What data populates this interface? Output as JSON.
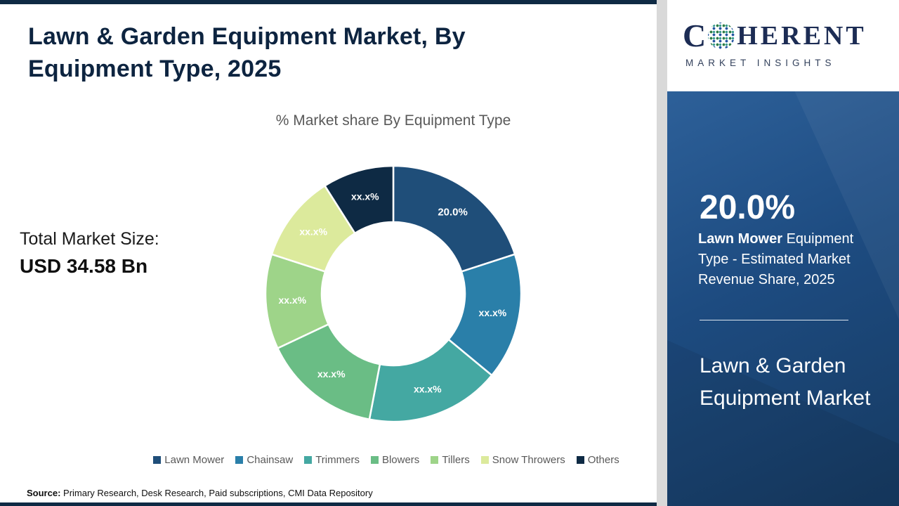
{
  "header": {
    "title": "Lawn & Garden Equipment Market, By Equipment Type, 2025"
  },
  "left_panel": {
    "total_market_label": "Total Market Size:",
    "total_market_value": "USD 34.58 Bn",
    "source_label": "Source:",
    "source_text": " Primary Research, Desk Research, Paid subscriptions, CMI Data Repository"
  },
  "chart_data": {
    "type": "pie",
    "subtype": "donut",
    "title": "% Market share By Equipment Type",
    "categories": [
      "Lawn Mower",
      "Chainsaw",
      "Trimmers",
      "Blowers",
      "Tillers",
      "Snow Throwers",
      "Others"
    ],
    "values": [
      20.0,
      16.0,
      17.0,
      15.0,
      12.0,
      11.0,
      9.0
    ],
    "display_labels": [
      "20.0%",
      "xx.x%",
      "xx.x%",
      "xx.x%",
      "xx.x%",
      "xx.x%",
      "xx.x%"
    ],
    "colors": [
      "#1f4e79",
      "#2a7fa9",
      "#44a8a2",
      "#6abd85",
      "#9ed489",
      "#dcea9c",
      "#0e2a44"
    ],
    "start_angle_deg": 0,
    "inner_radius_ratio": 0.56,
    "legend_position": "bottom",
    "label_color": "#ffffff"
  },
  "logo": {
    "letter_c": "C",
    "word_rest": "HERENT",
    "tagline": "MARKET INSIGHTS"
  },
  "right_panel": {
    "highlight_value": "20.0%",
    "highlight_bold": " Lawn Mower",
    "highlight_rest": " Equipment Type - Estimated Market Revenue Share, 2025",
    "market_name": "Lawn & Garden Equipment Market"
  }
}
